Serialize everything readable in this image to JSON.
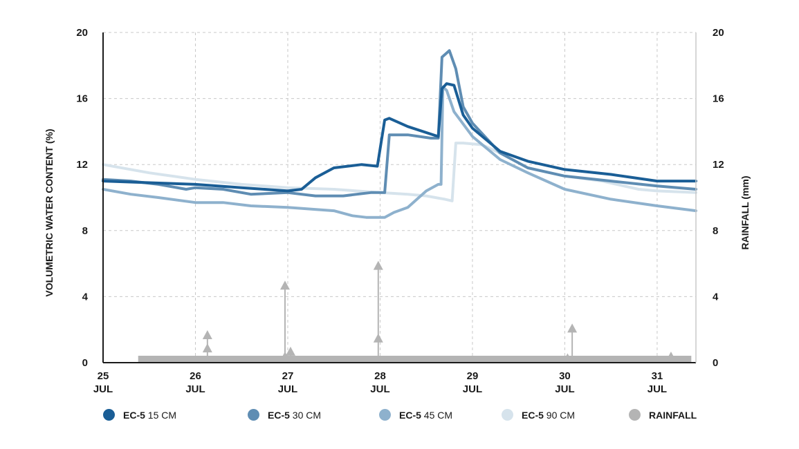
{
  "chart_data": {
    "type": "line",
    "title": "",
    "ylabel": "VOLUMETRIC WATER CONTENT (%)",
    "y2label": "RAINFALL (mm)",
    "ylim": [
      0,
      20
    ],
    "y2lim": [
      0,
      20
    ],
    "yticks": [
      "0",
      "4",
      "8",
      "12",
      "16",
      "20"
    ],
    "xlim": [
      25,
      31.42
    ],
    "xticks": [
      {
        "day": "25",
        "month": "JUL",
        "x": 25
      },
      {
        "day": "26",
        "month": "JUL",
        "x": 26
      },
      {
        "day": "27",
        "month": "JUL",
        "x": 27
      },
      {
        "day": "28",
        "month": "JUL",
        "x": 28
      },
      {
        "day": "29",
        "month": "JUL",
        "x": 29
      },
      {
        "day": "30",
        "month": "JUL",
        "x": 30
      },
      {
        "day": "31",
        "month": "JUL",
        "x": 31
      }
    ],
    "grid": true,
    "legend_position": "bottom",
    "series": [
      {
        "name": "EC-5 90 CM",
        "name_main": "EC-5",
        "name_depth": "90 CM",
        "color": "#d6e3ec",
        "x": [
          25,
          25.5,
          26,
          26.5,
          27,
          27.5,
          28,
          28.3,
          28.5,
          28.7,
          28.78,
          28.82,
          28.9,
          29.1,
          29.3,
          29.6,
          30,
          30.4,
          30.8,
          31,
          31.42
        ],
        "y": [
          12.0,
          11.5,
          11.1,
          10.8,
          10.6,
          10.5,
          10.3,
          10.2,
          10.1,
          9.9,
          9.8,
          13.3,
          13.3,
          13.2,
          12.7,
          11.8,
          11.3,
          11.0,
          10.5,
          10.4,
          10.3
        ]
      },
      {
        "name": "EC-5 45 CM",
        "name_main": "EC-5",
        "name_depth": "45 CM",
        "color": "#8eb1cd",
        "x": [
          25,
          25.3,
          25.6,
          26,
          26.3,
          26.6,
          27,
          27.5,
          27.7,
          27.85,
          28.05,
          28.15,
          28.3,
          28.5,
          28.63,
          28.66,
          28.68,
          28.72,
          28.8,
          29,
          29.3,
          29.6,
          30,
          30.5,
          31,
          31.42
        ],
        "y": [
          10.5,
          10.2,
          10.0,
          9.7,
          9.7,
          9.5,
          9.4,
          9.2,
          8.9,
          8.8,
          8.8,
          9.1,
          9.4,
          10.4,
          10.8,
          10.8,
          16.7,
          16.5,
          15.2,
          13.7,
          12.3,
          11.5,
          10.5,
          9.9,
          9.5,
          9.2
        ]
      },
      {
        "name": "EC-5 30 CM",
        "name_main": "EC-5",
        "name_depth": "30 CM",
        "color": "#5f8db3",
        "x": [
          25,
          25.3,
          25.6,
          25.9,
          26,
          26.3,
          26.6,
          27,
          27.3,
          27.6,
          27.9,
          28.05,
          28.1,
          28.3,
          28.55,
          28.63,
          28.67,
          28.75,
          28.82,
          28.9,
          29,
          29.3,
          29.6,
          30,
          30.5,
          31,
          31.42
        ],
        "y": [
          11.1,
          11.0,
          10.8,
          10.5,
          10.6,
          10.5,
          10.2,
          10.3,
          10.1,
          10.1,
          10.3,
          10.3,
          13.8,
          13.8,
          13.6,
          13.6,
          18.5,
          18.9,
          17.8,
          15.5,
          14.5,
          12.7,
          11.8,
          11.3,
          11.0,
          10.7,
          10.5
        ]
      },
      {
        "name": "EC-5 15 CM",
        "name_main": "EC-5",
        "name_depth": "15 CM",
        "color": "#1a5e96",
        "x": [
          25,
          25.5,
          26,
          26.5,
          27,
          27.15,
          27.3,
          27.5,
          27.8,
          27.97,
          28.05,
          28.1,
          28.3,
          28.63,
          28.67,
          28.72,
          28.8,
          28.9,
          29,
          29.3,
          29.6,
          30,
          30.5,
          31,
          31.42
        ],
        "y": [
          11.0,
          10.9,
          10.8,
          10.6,
          10.4,
          10.5,
          11.2,
          11.8,
          12.0,
          11.9,
          14.7,
          14.8,
          14.3,
          13.7,
          16.6,
          16.9,
          16.8,
          15.0,
          14.2,
          12.8,
          12.2,
          11.7,
          11.4,
          11.0,
          11.0
        ]
      }
    ],
    "rainfall": {
      "name": "RAINFALL",
      "color": "#b4b4b4",
      "baseline": [
        25.38,
        31.37
      ],
      "events": [
        {
          "x": 26.13,
          "values": [
            1.8,
            1.0
          ]
        },
        {
          "x": 26.97,
          "values": [
            4.8,
            0.5
          ]
        },
        {
          "x": 27.03,
          "values": [
            0.8
          ]
        },
        {
          "x": 27.98,
          "values": [
            6.0,
            1.6
          ]
        },
        {
          "x": 30.03,
          "values": [
            0.4
          ]
        },
        {
          "x": 30.08,
          "values": [
            2.2
          ]
        },
        {
          "x": 31.15,
          "values": [
            0.5
          ]
        }
      ]
    }
  },
  "legend": [
    {
      "main": "EC-5",
      "depth": "15 CM",
      "color": "#1a5e96"
    },
    {
      "main": "EC-5",
      "depth": "30 CM",
      "color": "#5f8db3"
    },
    {
      "main": "EC-5",
      "depth": "45 CM",
      "color": "#8eb1cd"
    },
    {
      "main": "EC-5",
      "depth": "90 CM",
      "color": "#d6e3ec"
    },
    {
      "main": "RAINFALL",
      "depth": "",
      "color": "#b4b4b4"
    }
  ]
}
